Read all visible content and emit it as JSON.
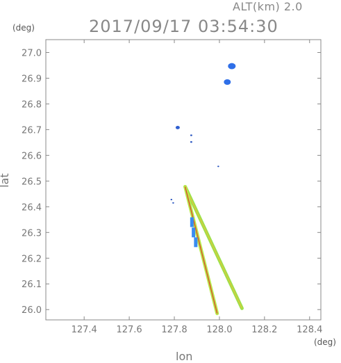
{
  "header": {
    "alt_label": "ALT(km) 2.0",
    "timestamp": "2017/09/17 03:54:30"
  },
  "chart_data": {
    "type": "scatter",
    "xlabel": "lon",
    "ylabel": "lat",
    "x_unit": "(deg)",
    "y_unit": "(deg)",
    "xlim": [
      127.23,
      128.45
    ],
    "ylim": [
      25.96,
      27.05
    ],
    "x_ticks": [
      127.4,
      127.6,
      127.8,
      128.0,
      128.2,
      128.4
    ],
    "x_tick_labels": [
      "127.4",
      "127.6",
      "127.8",
      "128.0",
      "128.2",
      "128.4"
    ],
    "y_ticks": [
      26.0,
      26.1,
      26.2,
      26.3,
      26.4,
      26.5,
      26.6,
      26.7,
      26.8,
      26.9,
      27.0
    ],
    "y_tick_labels": [
      "26.0",
      "26.1",
      "26.2",
      "26.3",
      "26.4",
      "26.5",
      "26.6",
      "26.7",
      "26.8",
      "26.9",
      "27.0"
    ],
    "grid": false,
    "echo_cells": [
      {
        "lon": 128.055,
        "lat": 26.947,
        "color": "#2f6fe8"
      },
      {
        "lon": 128.035,
        "lat": 26.885,
        "color": "#2f6fe8"
      },
      {
        "lon": 127.815,
        "lat": 26.708,
        "color": "#2f5fd0"
      },
      {
        "lon": 127.875,
        "lat": 26.678,
        "color": "#2a55c0"
      },
      {
        "lon": 127.875,
        "lat": 26.652,
        "color": "#2a55c0"
      },
      {
        "lon": 127.995,
        "lat": 26.557,
        "color": "#2a55c0"
      },
      {
        "lon": 127.787,
        "lat": 26.428,
        "color": "#2a55c0"
      },
      {
        "lon": 127.795,
        "lat": 26.415,
        "color": "#2a55c0"
      },
      {
        "lon": 127.878,
        "lat": 26.34,
        "color": "#3a8cf0"
      },
      {
        "lon": 127.885,
        "lat": 26.3,
        "color": "#3a8cf0"
      },
      {
        "lon": 127.895,
        "lat": 26.262,
        "color": "#3a8cf0"
      }
    ],
    "streaks": [
      {
        "from": [
          127.848,
          26.478
        ],
        "to": [
          128.1,
          26.005
        ],
        "color": "#9be24a",
        "edge": "#e8c23a"
      },
      {
        "from": [
          127.848,
          26.478
        ],
        "to": [
          127.99,
          25.985
        ],
        "color": "#b8e84a",
        "edge": "#e03a2a"
      }
    ]
  }
}
